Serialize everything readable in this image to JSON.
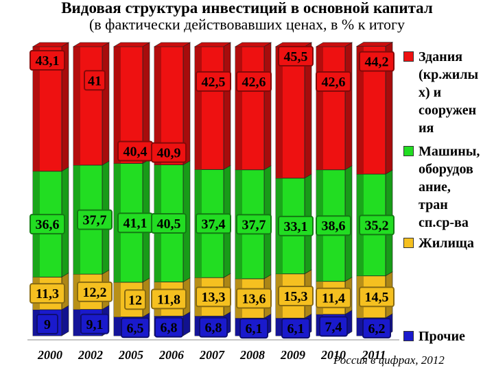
{
  "title": "Видовая структура инвестиций в основной капитал",
  "subtitle": "(в фактически действовавших ценах, в % к итогу",
  "source": "Россия в цифрах, 2012",
  "colors": {
    "buildings": "#ee1111",
    "machinery": "#22dd22",
    "housing": "#f5c020",
    "other": "#1a1acc"
  },
  "legend": [
    {
      "key": "buildings",
      "label": "Здания (кр.жилых) и сооружения",
      "label_lines": [
        "Здания",
        "(кр.жилы",
        "х) и",
        "сооружен",
        "ия"
      ]
    },
    {
      "key": "machinery",
      "label": "Машины, оборудование, тран сп.ср-ва",
      "label_lines": [
        "Машины,",
        "оборудов",
        "ание,",
        "тран",
        "сп.ср-ва"
      ]
    },
    {
      "key": "housing",
      "label": "Жилища",
      "label_lines": [
        "Жилища"
      ]
    },
    {
      "key": "other",
      "label": "Прочие",
      "label_lines": [
        "Прочие"
      ]
    }
  ],
  "chart_data": {
    "type": "bar",
    "stacked": true,
    "orientation": "vertical",
    "categories": [
      "2000",
      "2002",
      "2005",
      "2006",
      "2007",
      "2008",
      "2009",
      "2010",
      "2011"
    ],
    "series": [
      {
        "key": "other",
        "name": "Прочие",
        "values": [
          9,
          9.1,
          6.5,
          6.8,
          6.8,
          6.1,
          6.1,
          7.4,
          6.2
        ],
        "labels": [
          "9",
          "9,1",
          "6,5",
          "6,8",
          "6,8",
          "6,1",
          "6,1",
          "7,4",
          "6,2"
        ]
      },
      {
        "key": "housing",
        "name": "Жилища",
        "values": [
          11.3,
          12.2,
          12,
          11.8,
          13.3,
          13.6,
          15.3,
          11.4,
          14.5
        ],
        "labels": [
          "11,3",
          "12,2",
          "12",
          "11,8",
          "13,3",
          "13,6",
          "15,3",
          "11,4",
          "14,5"
        ]
      },
      {
        "key": "machinery",
        "name": "Машины, оборудование, тран сп.ср-ва",
        "values": [
          36.6,
          37.7,
          41.1,
          40.5,
          37.4,
          37.7,
          33.1,
          38.6,
          35.2
        ],
        "labels": [
          "36,6",
          "37,7",
          "41,1",
          "40,5",
          "37,4",
          "37,7",
          "33,1",
          "38,6",
          "35,2"
        ]
      },
      {
        "key": "buildings",
        "name": "Здания (кр.жилых) и сооружения",
        "values": [
          43.1,
          41,
          40.4,
          40.9,
          42.5,
          42.6,
          45.5,
          42.6,
          44.2
        ],
        "labels": [
          "43,1",
          "41",
          "40,4",
          "40,9",
          "42,5",
          "42,6",
          "45,5",
          "42,6",
          "44,2"
        ]
      }
    ],
    "ylim": [
      0,
      100
    ],
    "grid": false,
    "legend_position": "right"
  }
}
